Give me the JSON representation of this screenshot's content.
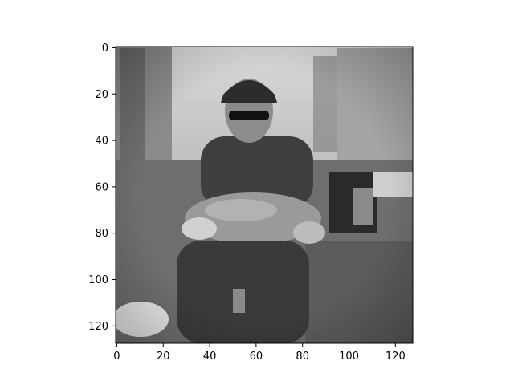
{
  "chart_data": {
    "type": "heatmap",
    "colormap": "gray",
    "image_shape": [
      128,
      128
    ],
    "xlim": [
      -0.5,
      127.5
    ],
    "ylim": [
      127.5,
      -0.5
    ],
    "x_ticks": [
      0,
      20,
      40,
      60,
      80,
      100,
      120
    ],
    "y_ticks": [
      0,
      20,
      40,
      60,
      80,
      100,
      120
    ],
    "x_tick_labels": [
      "0",
      "20",
      "40",
      "60",
      "80",
      "100",
      "120"
    ],
    "y_tick_labels": [
      "0",
      "20",
      "40",
      "60",
      "80",
      "100",
      "120"
    ],
    "grid": false
  }
}
